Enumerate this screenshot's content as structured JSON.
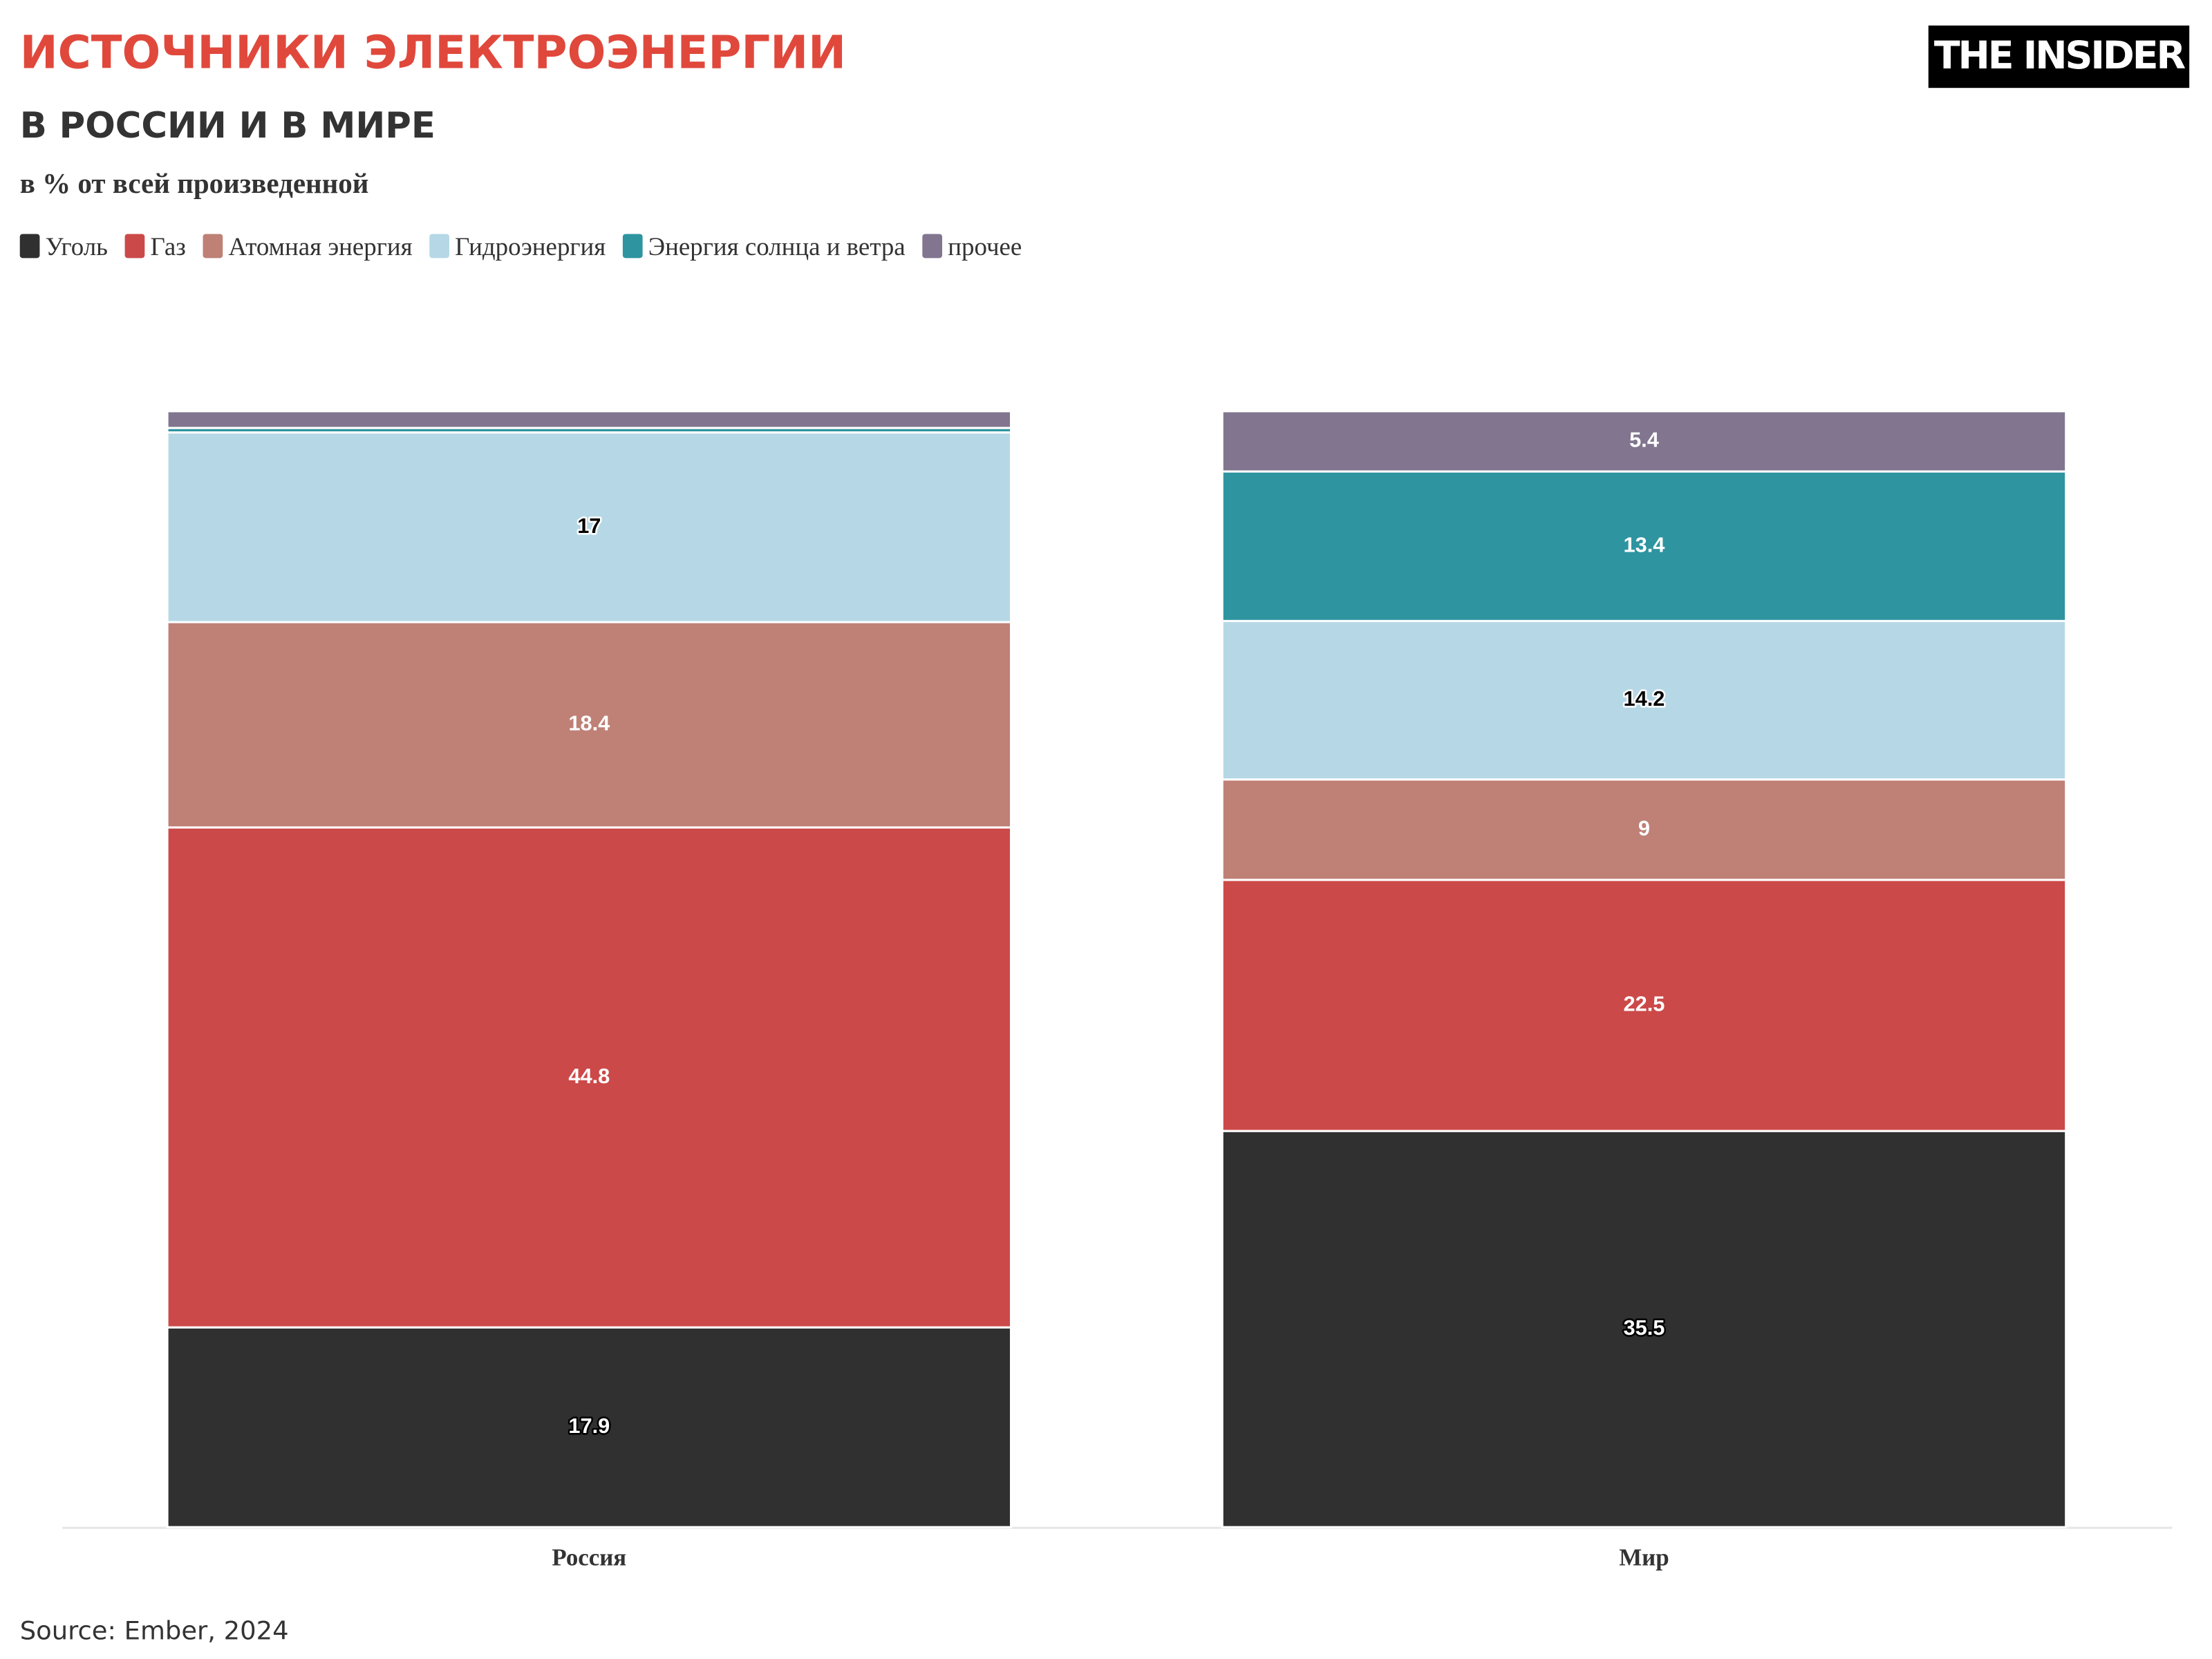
{
  "chart_data": {
    "type": "stacked-bar",
    "title": "ИСТОЧНИКИ ЭЛЕКТРОЭНЕРГИИ",
    "subtitle": "В РОССИИ И В МИРЕ",
    "unit_note": "в % от всей произведенной",
    "logo": "THE INSIDER",
    "source": "Source: Ember, 2024",
    "categories": [
      "Россия",
      "Мир"
    ],
    "ylim": [
      0,
      100
    ],
    "series": [
      {
        "name": "Уголь",
        "color": "#303030",
        "values": [
          17.9,
          35.5
        ]
      },
      {
        "name": "Газ",
        "color": "#cc4949",
        "values": [
          44.8,
          22.5
        ]
      },
      {
        "name": "Атомная энергия",
        "color": "#bf8076",
        "values": [
          18.4,
          9
        ]
      },
      {
        "name": "Гидроэнергия",
        "color": "#b6d8e6",
        "values": [
          17,
          14.2
        ]
      },
      {
        "name": "Энергия солнца и ветра",
        "color": "#2e94a0",
        "values": [
          0.4,
          13.4
        ]
      },
      {
        "name": "прочее",
        "color": "#81758f",
        "values": [
          1.5,
          5.4
        ]
      }
    ]
  }
}
